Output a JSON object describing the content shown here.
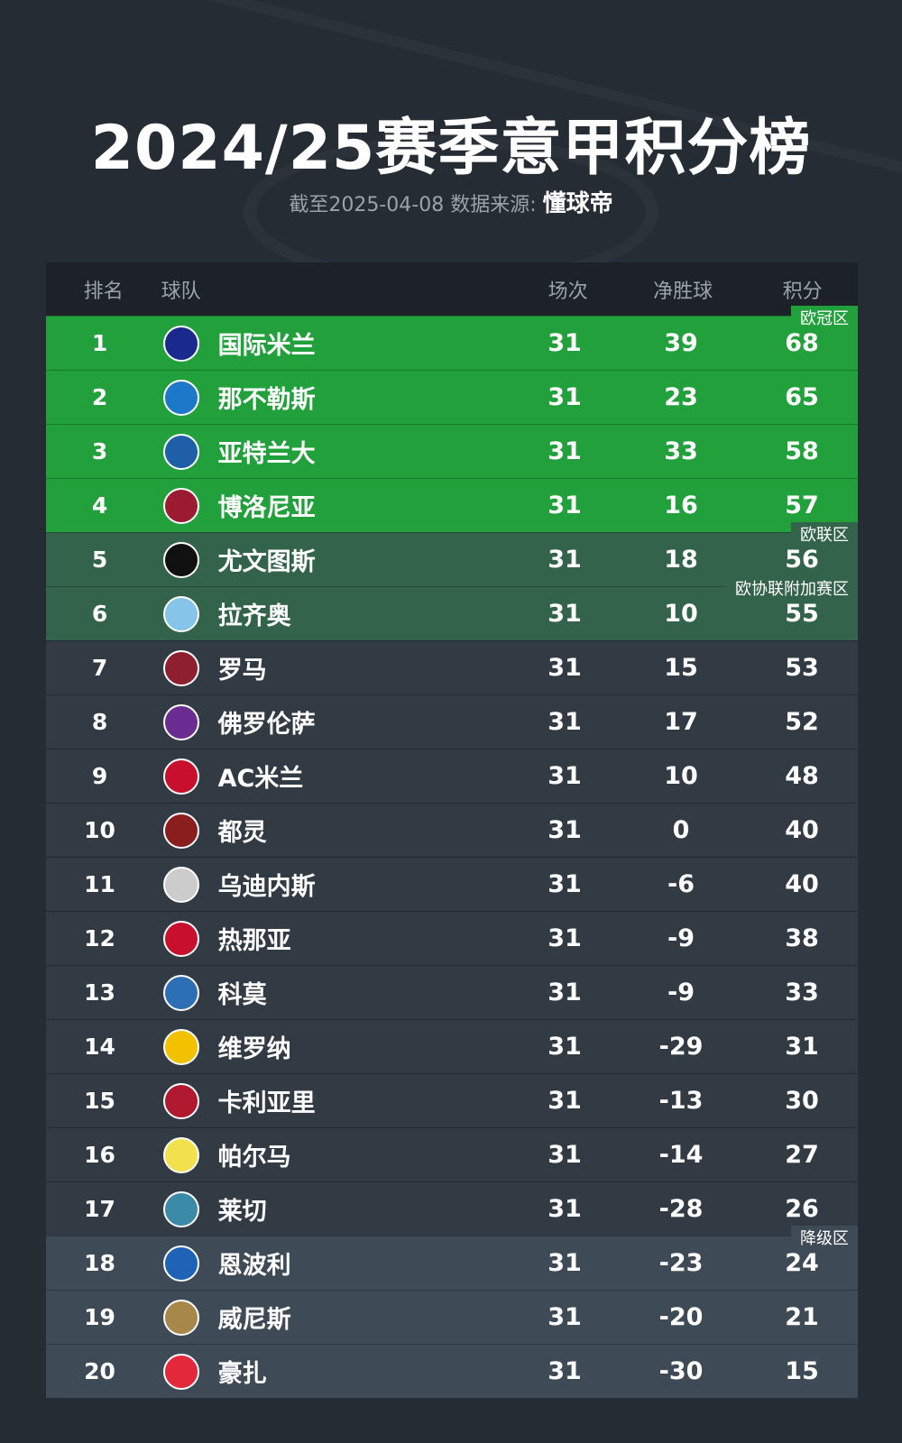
{
  "title": "2024/25赛季意甲积分榜",
  "subtitle": {
    "prefix": "截至2025-04-08 数据来源:",
    "source": "懂球帝"
  },
  "header": {
    "rank": "排名",
    "team": "球队",
    "played": "场次",
    "gd": "净胜球",
    "pts": "积分"
  },
  "zones": {
    "ucl": "欧冠区",
    "uel": "欧联区",
    "uecl": "欧协联附加赛区",
    "rel": "降级区"
  },
  "colors": {
    "ucl": "#22a03b",
    "uel": "#33634a",
    "normal": "#323a44",
    "relegation": "#3f4a57"
  },
  "rows": [
    {
      "rank": "1",
      "team": "国际米兰",
      "played": "31",
      "gd": "39",
      "pts": "68",
      "logo": "#1a2a8c"
    },
    {
      "rank": "2",
      "team": "那不勒斯",
      "played": "31",
      "gd": "23",
      "pts": "65",
      "logo": "#1d78c9"
    },
    {
      "rank": "3",
      "team": "亚特兰大",
      "played": "31",
      "gd": "33",
      "pts": "58",
      "logo": "#1e5fa8"
    },
    {
      "rank": "4",
      "team": "博洛尼亚",
      "played": "31",
      "gd": "16",
      "pts": "57",
      "logo": "#9b1b30"
    },
    {
      "rank": "5",
      "team": "尤文图斯",
      "played": "31",
      "gd": "18",
      "pts": "56",
      "logo": "#111111"
    },
    {
      "rank": "6",
      "team": "拉齐奥",
      "played": "31",
      "gd": "10",
      "pts": "55",
      "logo": "#87c4ea"
    },
    {
      "rank": "7",
      "team": "罗马",
      "played": "31",
      "gd": "15",
      "pts": "53",
      "logo": "#8e1f2f"
    },
    {
      "rank": "8",
      "team": "佛罗伦萨",
      "played": "31",
      "gd": "17",
      "pts": "52",
      "logo": "#6b2d91"
    },
    {
      "rank": "9",
      "team": "AC米兰",
      "played": "31",
      "gd": "10",
      "pts": "48",
      "logo": "#c8102e"
    },
    {
      "rank": "10",
      "team": "都灵",
      "played": "31",
      "gd": "0",
      "pts": "40",
      "logo": "#8a1e1e"
    },
    {
      "rank": "11",
      "team": "乌迪内斯",
      "played": "31",
      "gd": "-6",
      "pts": "40",
      "logo": "#cccccc"
    },
    {
      "rank": "12",
      "team": "热那亚",
      "played": "31",
      "gd": "-9",
      "pts": "38",
      "logo": "#c8102e"
    },
    {
      "rank": "13",
      "team": "科莫",
      "played": "31",
      "gd": "-9",
      "pts": "33",
      "logo": "#2d6fb5"
    },
    {
      "rank": "14",
      "team": "维罗纳",
      "played": "31",
      "gd": "-29",
      "pts": "31",
      "logo": "#f2c200"
    },
    {
      "rank": "15",
      "team": "卡利亚里",
      "played": "31",
      "gd": "-13",
      "pts": "30",
      "logo": "#b0192f"
    },
    {
      "rank": "16",
      "team": "帕尔马",
      "played": "31",
      "gd": "-14",
      "pts": "27",
      "logo": "#f2e14c"
    },
    {
      "rank": "17",
      "team": "莱切",
      "played": "31",
      "gd": "-28",
      "pts": "26",
      "logo": "#3a8aa8"
    },
    {
      "rank": "18",
      "team": "恩波利",
      "played": "31",
      "gd": "-23",
      "pts": "24",
      "logo": "#1e63b5"
    },
    {
      "rank": "19",
      "team": "威尼斯",
      "played": "31",
      "gd": "-20",
      "pts": "21",
      "logo": "#a8874a"
    },
    {
      "rank": "20",
      "team": "豪扎",
      "played": "31",
      "gd": "-30",
      "pts": "15",
      "logo": "#e2283a"
    }
  ]
}
